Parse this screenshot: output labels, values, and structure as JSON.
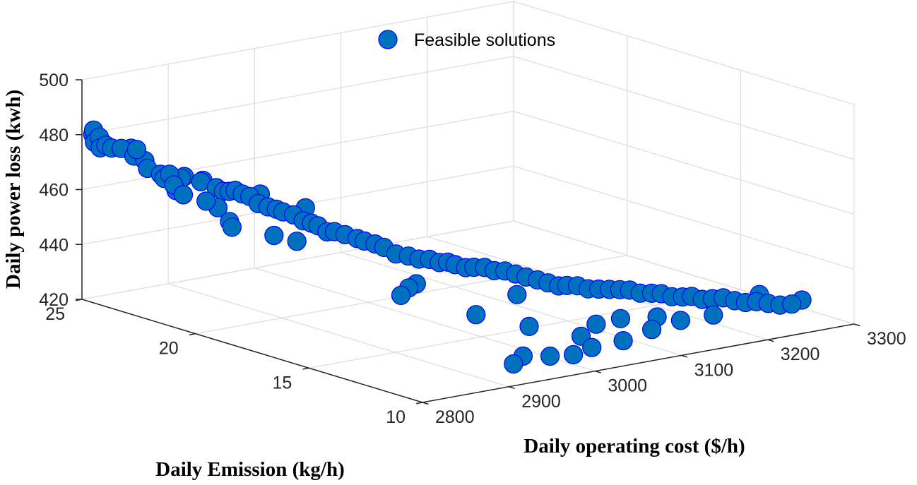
{
  "chart_data": {
    "type": "scatter",
    "title": "",
    "xlabel": "Daily operating cost ($/h)",
    "ylabel": "Daily Emission (kg/h)",
    "zlabel": "Daily power loss (kwh)",
    "xlim": [
      2800,
      3300
    ],
    "ylim": [
      10,
      25
    ],
    "zlim": [
      420,
      500
    ],
    "xticks": [
      "2800",
      "2900",
      "3000",
      "3100",
      "3200",
      "3300"
    ],
    "yticks": [
      "10",
      "15",
      "20",
      "25"
    ],
    "zticks": [
      "420",
      "440",
      "460",
      "480",
      "500"
    ],
    "grid": true,
    "legend": {
      "position": "top-center",
      "entries": [
        "Feasible solutions"
      ]
    },
    "marker": {
      "face": "#0072bd",
      "edge": "#0000ff"
    },
    "series": [
      {
        "name": "Feasible solutions",
        "points": [
          [
            2802,
            24.6,
            481
          ],
          [
            2803,
            24.6,
            482.5
          ],
          [
            2804,
            24.6,
            478
          ],
          [
            2807,
            24.5,
            480
          ],
          [
            2808,
            24.5,
            476
          ],
          [
            2812,
            24.4,
            477
          ],
          [
            2816,
            24.3,
            476
          ],
          [
            2822,
            24.1,
            476
          ],
          [
            2824,
            23.5,
            477
          ],
          [
            2826,
            23.7,
            474
          ],
          [
            2826,
            23.1,
            471
          ],
          [
            2836,
            24.2,
            475
          ],
          [
            2836,
            23.6,
            472
          ],
          [
            2828,
            21.6,
            465
          ],
          [
            2838,
            22.4,
            466
          ],
          [
            2840,
            22.9,
            467
          ],
          [
            2841,
            23.1,
            468
          ],
          [
            2841,
            22.7,
            469
          ],
          [
            2836,
            20.9,
            464
          ],
          [
            2846,
            22.6,
            463
          ],
          [
            2845,
            20.1,
            456
          ],
          [
            2850,
            20.4,
            457
          ],
          [
            2855,
            21.1,
            460
          ],
          [
            2860,
            22.9,
            466
          ],
          [
            2866,
            23.0,
            466
          ],
          [
            2872,
            22.5,
            465
          ],
          [
            2877,
            22.6,
            465
          ],
          [
            2882,
            22.2,
            463
          ],
          [
            2885,
            22.0,
            462
          ],
          [
            2889,
            21.9,
            462
          ],
          [
            2896,
            21.9,
            462
          ],
          [
            2899,
            21.7,
            461
          ],
          [
            2905,
            21.6,
            460
          ],
          [
            2907,
            21.3,
            458
          ],
          [
            2913,
            21.1,
            457
          ],
          [
            2920,
            21.0,
            456
          ],
          [
            2925,
            20.9,
            455
          ],
          [
            2932,
            20.7,
            454
          ],
          [
            2938,
            20.5,
            452
          ],
          [
            2945,
            20.4,
            451
          ],
          [
            2950,
            20.3,
            450
          ],
          [
            2955,
            20.1,
            448
          ],
          [
            2961,
            20.0,
            448
          ],
          [
            2968,
            19.8,
            447
          ],
          [
            2974,
            19.5,
            446
          ],
          [
            2980,
            19.4,
            445
          ],
          [
            2987,
            19.2,
            444
          ],
          [
            2992,
            19.0,
            443
          ],
          [
            2998,
            18.7,
            441
          ],
          [
            3002,
            18.3,
            441
          ],
          [
            3009,
            18.1,
            440
          ],
          [
            3016,
            17.9,
            440
          ],
          [
            3022,
            17.7,
            439
          ],
          [
            3029,
            17.6,
            439
          ],
          [
            3035,
            17.5,
            438
          ],
          [
            3042,
            17.3,
            437
          ],
          [
            3049,
            17.2,
            437
          ],
          [
            3056,
            17.0,
            437
          ],
          [
            3062,
            16.8,
            436
          ],
          [
            3069,
            16.6,
            436
          ],
          [
            3076,
            16.4,
            435
          ],
          [
            3083,
            16.2,
            434
          ],
          [
            3091,
            16.0,
            433
          ],
          [
            3098,
            15.8,
            432
          ],
          [
            3105,
            15.6,
            431
          ],
          [
            3112,
            15.5,
            431
          ],
          [
            3119,
            15.3,
            431
          ],
          [
            3126,
            15.1,
            430
          ],
          [
            3133,
            14.9,
            430
          ],
          [
            3140,
            14.7,
            430
          ],
          [
            3147,
            14.5,
            430
          ],
          [
            3153,
            14.3,
            430
          ],
          [
            3160,
            14.1,
            429
          ],
          [
            3168,
            13.9,
            429
          ],
          [
            3174,
            13.7,
            429
          ],
          [
            3181,
            13.5,
            428
          ],
          [
            3188,
            13.3,
            428
          ],
          [
            3196,
            13.2,
            428
          ],
          [
            3203,
            13.0,
            427
          ],
          [
            3212,
            12.9,
            427
          ],
          [
            3222,
            12.8,
            427
          ],
          [
            3230,
            12.6,
            426
          ],
          [
            3240,
            12.5,
            425
          ],
          [
            3250,
            12.4,
            425
          ],
          [
            3261,
            12.3,
            424
          ],
          [
            3272,
            12.2,
            423
          ],
          [
            3283,
            12.1,
            423
          ],
          [
            3300,
            12.3,
            423
          ],
          [
            3256,
            12.5,
            427
          ],
          [
            3200,
            12.4,
            423
          ],
          [
            3170,
            12.7,
            422
          ],
          [
            3134,
            12.6,
            421
          ],
          [
            3093,
            12.3,
            420
          ],
          [
            3060,
            12.9,
            422
          ],
          [
            3054,
            12.2,
            420
          ],
          [
            3030,
            12.1,
            419
          ],
          [
            3003,
            12.1,
            420
          ],
          [
            2958,
            12.0,
            420
          ],
          [
            3080,
            13.0,
            425
          ],
          [
            3013,
            13.4,
            427
          ],
          [
            3111,
            13.1,
            425
          ],
          [
            3148,
            12.9,
            424
          ],
          [
            2977,
            12.3,
            421
          ],
          [
            2913,
            14.9,
            443
          ],
          [
            2896,
            14.6,
            442
          ],
          [
            2948,
            15.9,
            440
          ],
          [
            2983,
            14.6,
            430
          ],
          [
            3041,
            15.0,
            433
          ],
          [
            2862,
            18.9,
            455
          ],
          [
            2878,
            18.5,
            453
          ],
          [
            2951,
            20.9,
            455
          ],
          [
            2925,
            21.9,
            459
          ]
        ]
      }
    ]
  }
}
